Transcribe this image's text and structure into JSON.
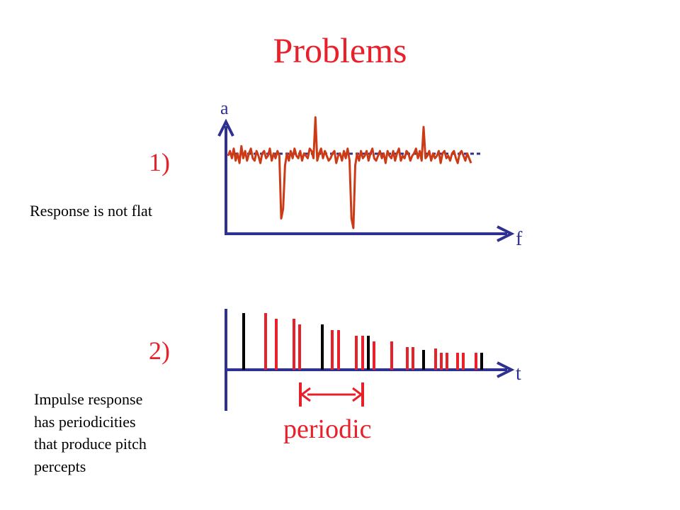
{
  "title": "Problems",
  "panel1": {
    "number": "1)",
    "caption": "Response is not flat",
    "y_axis_label": "a",
    "x_axis_label": "f"
  },
  "panel2": {
    "number": "2)",
    "caption_lines": [
      "Impulse response",
      "has periodicities",
      "that produce pitch",
      "percepts"
    ],
    "x_axis_label": "t",
    "annotation": "periodic"
  },
  "colors": {
    "title": "#e8202a",
    "axis": "#2e3192",
    "response": "#cc3a16",
    "impulse_red": "#e8202a",
    "impulse_black": "#000000"
  },
  "chart_data": [
    {
      "type": "line",
      "panel": "1)",
      "xlabel": "f",
      "ylabel": "a",
      "description_values": "amplitude relative to flat reference (0)",
      "values": [
        0,
        2,
        -1,
        3,
        -2,
        1,
        -3,
        4,
        -1,
        2,
        -2,
        1,
        3,
        -1,
        -2,
        2,
        0,
        -3,
        1,
        2,
        -1,
        0,
        3,
        -2,
        1,
        -1,
        2,
        0,
        -26,
        -22,
        -4,
        1,
        -2,
        2,
        -1,
        3,
        0,
        -1,
        2,
        -2,
        1,
        0,
        -1,
        3,
        2,
        -1,
        16,
        -2,
        1,
        3,
        -1,
        2,
        0,
        -2,
        -1,
        1,
        2,
        -3,
        0,
        1,
        -2,
        2,
        -1,
        3,
        -2,
        -26,
        -30,
        -4,
        1,
        -2,
        2,
        -1,
        0,
        2,
        -2,
        1,
        3,
        -1,
        -2,
        0,
        2,
        -1,
        1,
        -3,
        2,
        0,
        -1,
        2,
        -2,
        1,
        3,
        -2,
        0,
        -1,
        2,
        1,
        -2,
        0,
        1,
        3,
        -1,
        2,
        -2,
        12,
        -1,
        0,
        2,
        -2,
        1,
        -1,
        0,
        2,
        -3,
        1,
        2,
        -1,
        0,
        -2,
        1,
        2,
        -1,
        -3,
        1,
        2,
        0,
        -2,
        1,
        -1,
        -3
      ],
      "flat_reference": 0
    },
    {
      "type": "bar",
      "panel": "2)",
      "xlabel": "t",
      "impulses": [
        {
          "c": "black",
          "h": 80
        },
        {
          "c": "red",
          "h": 80
        },
        {
          "c": "red",
          "h": 72
        },
        {
          "c": "red",
          "h": 72
        },
        {
          "c": "red",
          "h": 64
        },
        {
          "c": "black",
          "h": 64
        },
        {
          "c": "red",
          "h": 56
        },
        {
          "c": "red",
          "h": 56
        },
        {
          "c": "red",
          "h": 48
        },
        {
          "c": "red",
          "h": 48
        },
        {
          "c": "black",
          "h": 48
        },
        {
          "c": "red",
          "h": 40
        },
        {
          "c": "red",
          "h": 40
        },
        {
          "c": "red",
          "h": 32
        },
        {
          "c": "red",
          "h": 32
        },
        {
          "c": "black",
          "h": 28
        },
        {
          "c": "red",
          "h": 30
        },
        {
          "c": "red",
          "h": 24
        },
        {
          "c": "red",
          "h": 24
        },
        {
          "c": "red",
          "h": 24
        },
        {
          "c": "red",
          "h": 24
        },
        {
          "c": "red",
          "h": 24
        },
        {
          "c": "black",
          "h": 24
        }
      ]
    }
  ]
}
